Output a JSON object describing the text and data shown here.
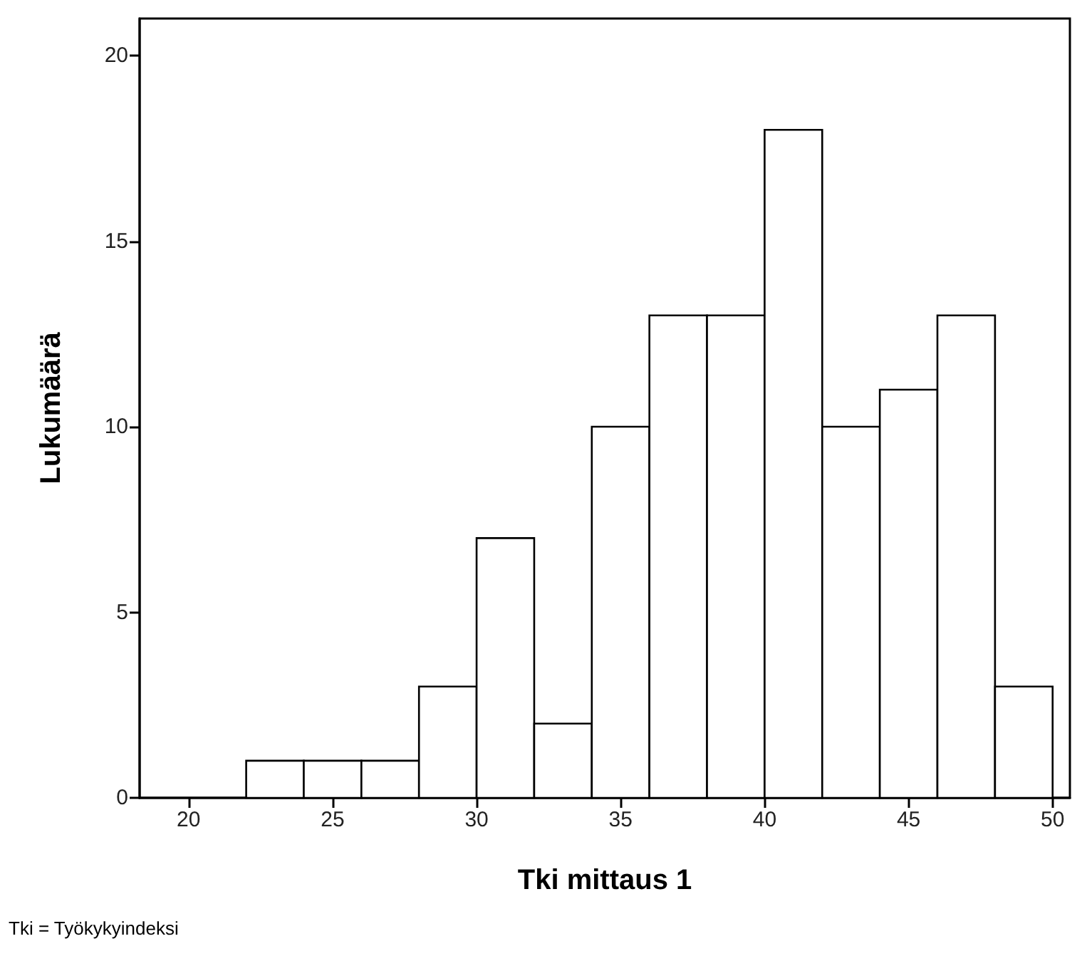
{
  "chart_data": {
    "type": "histogram",
    "xlabel": "Tki mittaus 1",
    "ylabel": "Lukumäärä",
    "bins": [
      22,
      24,
      26,
      28,
      30,
      32,
      34,
      36,
      38,
      40,
      42,
      44,
      46,
      48,
      50
    ],
    "values": [
      1,
      1,
      1,
      3,
      7,
      2,
      10,
      13,
      13,
      18,
      10,
      11,
      13,
      3
    ],
    "color": "#ffffff",
    "xlim": [
      18.3,
      50.6
    ],
    "xticks": [
      20,
      25,
      30,
      35,
      40,
      45,
      50
    ],
    "ylim": [
      0,
      21
    ],
    "yticks": [
      0,
      5,
      10,
      15,
      20
    ],
    "grid": false,
    "annotations": [
      "Tki = Työkykyindeksi"
    ]
  }
}
